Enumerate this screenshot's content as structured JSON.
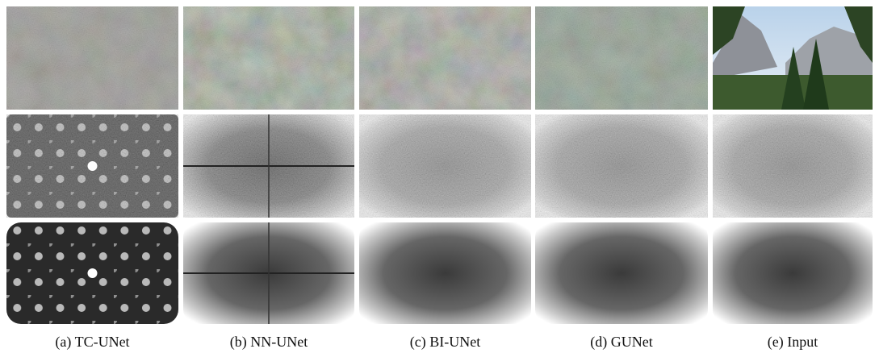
{
  "captions": [
    "(a) TC-UNet",
    "(b) NN-UNet",
    "(c) BI-UNet",
    "(d) GUNet",
    "(e) Input"
  ]
}
